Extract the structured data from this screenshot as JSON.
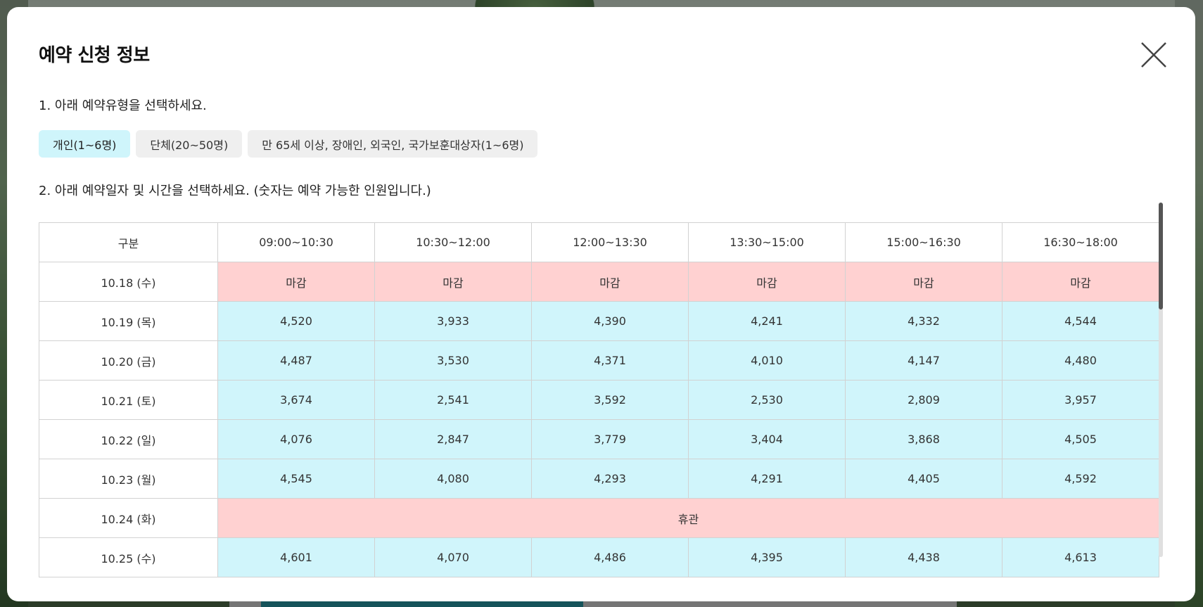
{
  "modal": {
    "title": "예약 신청 정보",
    "step1": "1. 아래 예약유형을 선택하세요.",
    "step2": "2. 아래 예약일자 및 시간을 선택하세요. (숫자는 예약 가능한 인원입니다.)",
    "close_icon": "close-icon",
    "types": [
      {
        "label": "개인(1~6명)",
        "active": true
      },
      {
        "label": "단체(20~50명)",
        "active": false
      },
      {
        "label": "만 65세 이상, 장애인, 외국인, 국가보훈대상자(1~6명)",
        "active": false
      }
    ]
  },
  "table": {
    "header": [
      "구분",
      "09:00~10:30",
      "10:30~12:00",
      "12:00~13:30",
      "13:30~15:00",
      "15:00~16:30",
      "16:30~18:00"
    ],
    "rows": [
      {
        "date": "10.18 (수)",
        "status": "closed",
        "cells": [
          "마감",
          "마감",
          "마감",
          "마감",
          "마감",
          "마감"
        ]
      },
      {
        "date": "10.19 (목)",
        "status": "open",
        "cells": [
          "4,520",
          "3,933",
          "4,390",
          "4,241",
          "4,332",
          "4,544"
        ]
      },
      {
        "date": "10.20 (금)",
        "status": "open",
        "cells": [
          "4,487",
          "3,530",
          "4,371",
          "4,010",
          "4,147",
          "4,480"
        ]
      },
      {
        "date": "10.21 (토)",
        "status": "open",
        "cells": [
          "3,674",
          "2,541",
          "3,592",
          "2,530",
          "2,809",
          "3,957"
        ]
      },
      {
        "date": "10.22 (일)",
        "status": "open",
        "cells": [
          "4,076",
          "2,847",
          "3,779",
          "3,404",
          "3,868",
          "4,505"
        ]
      },
      {
        "date": "10.23 (월)",
        "status": "open",
        "cells": [
          "4,545",
          "4,080",
          "4,293",
          "4,291",
          "4,405",
          "4,592"
        ]
      },
      {
        "date": "10.24 (화)",
        "status": "holiday",
        "holiday_label": "휴관"
      },
      {
        "date": "10.25 (수)",
        "status": "open",
        "cells": [
          "4,601",
          "4,070",
          "4,486",
          "4,395",
          "4,438",
          "4,613"
        ]
      }
    ]
  },
  "colors": {
    "open": "#d0f5fb",
    "closed": "#ffd1d1",
    "active_tab": "#cff5fb"
  }
}
